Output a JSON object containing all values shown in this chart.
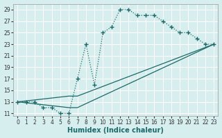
{
  "xlabel": "Humidex (Indice chaleur)",
  "background_color": "#d6eeee",
  "grid_color": "#c0dcdc",
  "line_color": "#1a6868",
  "xlim": [
    -0.5,
    23.5
  ],
  "ylim": [
    10.5,
    30
  ],
  "xticks": [
    0,
    1,
    2,
    3,
    4,
    5,
    6,
    7,
    8,
    9,
    10,
    11,
    12,
    13,
    14,
    15,
    16,
    17,
    18,
    19,
    20,
    21,
    22,
    23
  ],
  "yticks": [
    11,
    13,
    15,
    17,
    19,
    21,
    23,
    25,
    27,
    29
  ],
  "main_x": [
    0,
    1,
    2,
    3,
    4,
    5,
    6,
    7,
    8,
    9,
    10,
    11,
    12,
    13,
    14,
    15,
    16,
    17,
    18,
    19,
    20,
    21,
    22,
    23
  ],
  "main_y": [
    13,
    13,
    13,
    12,
    12,
    11,
    11,
    17,
    23,
    16,
    25,
    26,
    29,
    29,
    28,
    28,
    28,
    27,
    26,
    25,
    25,
    24,
    23,
    23
  ],
  "line2_x": [
    0,
    6,
    7,
    23
  ],
  "line2_y": [
    13,
    14,
    14,
    23
  ],
  "line3_x": [
    0,
    6,
    7,
    23
  ],
  "line3_y": [
    13,
    12,
    12,
    23
  ]
}
